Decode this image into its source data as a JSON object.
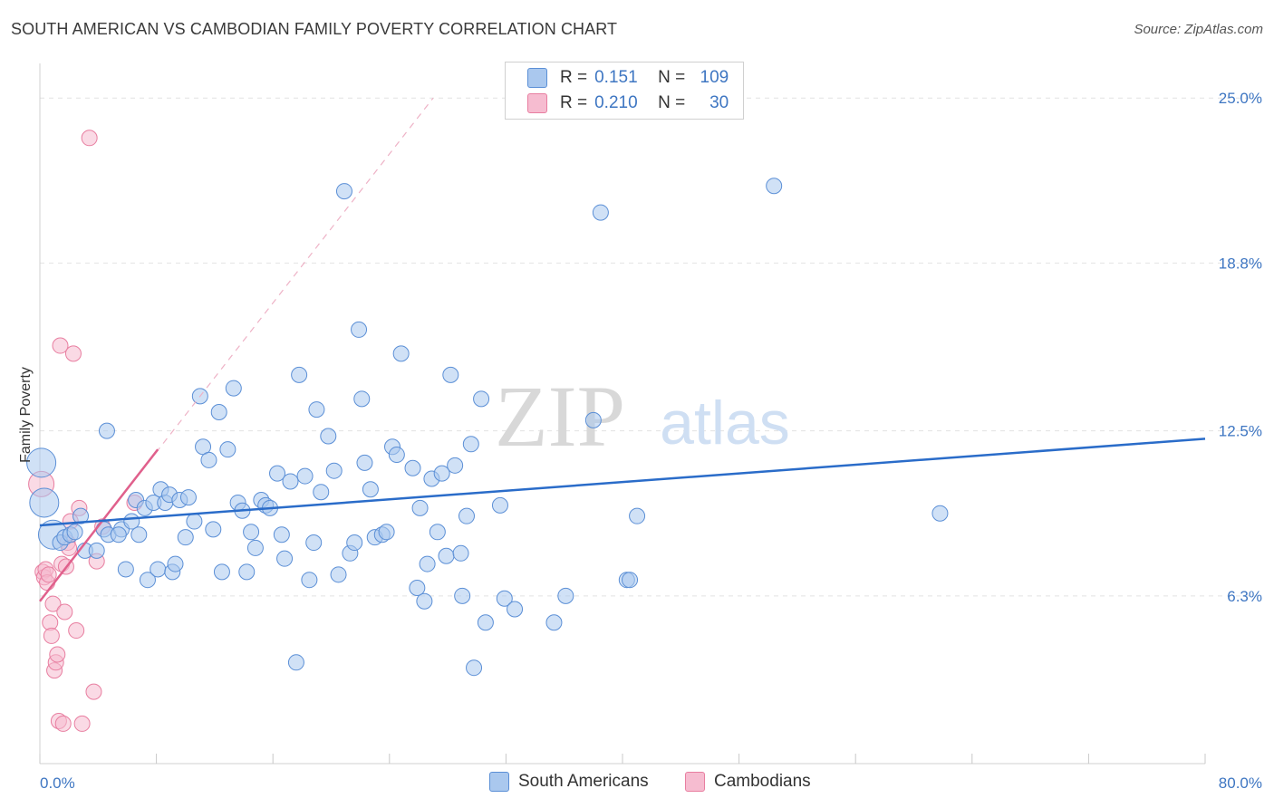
{
  "title": "SOUTH AMERICAN VS CAMBODIAN FAMILY POVERTY CORRELATION CHART",
  "source": "Source: ZipAtlas.com",
  "watermark": {
    "zip": "ZIP",
    "atlas": "atlas"
  },
  "colors": {
    "blue_fill": "#aac8ee",
    "blue_stroke": "#5b8fd6",
    "blue_line": "#2a6cc9",
    "pink_fill": "#f6bcd0",
    "pink_stroke": "#e87ea0",
    "pink_line": "#e0608c",
    "axis_text": "#3e76c2",
    "grid": "#e2e2e2"
  },
  "legend": {
    "rows": [
      {
        "r_label": "R =",
        "r_value": "0.151",
        "n_label": "N =",
        "n_value": "109"
      },
      {
        "r_label": "R =",
        "r_value": "0.210",
        "n_label": "N =",
        "n_value": "30"
      }
    ]
  },
  "bottom_legend": {
    "south_americans": "South Americans",
    "cambodians": "Cambodians"
  },
  "chart_data": {
    "type": "scatter",
    "title": "SOUTH AMERICAN VS CAMBODIAN FAMILY POVERTY CORRELATION CHART",
    "xlabel": "",
    "ylabel": "Family Poverty",
    "xlim": [
      0,
      80
    ],
    "ylim": [
      0,
      26.3
    ],
    "x_tick_labels": [
      "0.0%",
      "80.0%"
    ],
    "y_ticks": [
      6.3,
      12.5,
      18.8,
      25.0
    ],
    "y_tick_labels": [
      "6.3%",
      "12.5%",
      "18.8%",
      "25.0%"
    ],
    "grid": true,
    "legend_position": "top-center",
    "series": [
      {
        "name": "South Americans",
        "color": "#aac8ee",
        "r": 0.151,
        "n": 109,
        "trend": {
          "x": [
            0,
            80
          ],
          "y": [
            8.95,
            12.2
          ]
        },
        "points": [
          {
            "x": 0.1,
            "y": 11.3,
            "big": 1
          },
          {
            "x": 0.3,
            "y": 9.8,
            "big": 1
          },
          {
            "x": 0.9,
            "y": 8.6,
            "big": 1
          },
          {
            "x": 1.4,
            "y": 8.3
          },
          {
            "x": 1.7,
            "y": 8.5
          },
          {
            "x": 2.1,
            "y": 8.6
          },
          {
            "x": 2.4,
            "y": 8.7
          },
          {
            "x": 2.8,
            "y": 9.3
          },
          {
            "x": 3.1,
            "y": 8.0
          },
          {
            "x": 3.9,
            "y": 8.0
          },
          {
            "x": 4.4,
            "y": 8.8
          },
          {
            "x": 4.7,
            "y": 8.6
          },
          {
            "x": 4.6,
            "y": 12.5
          },
          {
            "x": 5.6,
            "y": 8.8
          },
          {
            "x": 5.4,
            "y": 8.6
          },
          {
            "x": 6.3,
            "y": 9.1
          },
          {
            "x": 5.9,
            "y": 7.3
          },
          {
            "x": 6.8,
            "y": 8.6
          },
          {
            "x": 6.6,
            "y": 9.9
          },
          {
            "x": 7.2,
            "y": 9.6
          },
          {
            "x": 7.4,
            "y": 6.9
          },
          {
            "x": 7.8,
            "y": 9.8
          },
          {
            "x": 8.1,
            "y": 7.3
          },
          {
            "x": 8.3,
            "y": 10.3
          },
          {
            "x": 8.6,
            "y": 9.8
          },
          {
            "x": 8.9,
            "y": 10.1
          },
          {
            "x": 9.1,
            "y": 7.2
          },
          {
            "x": 9.3,
            "y": 7.5
          },
          {
            "x": 9.6,
            "y": 9.9
          },
          {
            "x": 10.0,
            "y": 8.5
          },
          {
            "x": 10.2,
            "y": 10.0
          },
          {
            "x": 10.6,
            "y": 9.1
          },
          {
            "x": 11.0,
            "y": 13.8
          },
          {
            "x": 11.2,
            "y": 11.9
          },
          {
            "x": 11.6,
            "y": 11.4
          },
          {
            "x": 11.9,
            "y": 8.8
          },
          {
            "x": 12.3,
            "y": 13.2
          },
          {
            "x": 12.5,
            "y": 7.2
          },
          {
            "x": 12.9,
            "y": 11.8
          },
          {
            "x": 13.3,
            "y": 14.1
          },
          {
            "x": 13.6,
            "y": 9.8
          },
          {
            "x": 13.9,
            "y": 9.5
          },
          {
            "x": 14.2,
            "y": 7.2
          },
          {
            "x": 14.5,
            "y": 8.7
          },
          {
            "x": 14.8,
            "y": 8.1
          },
          {
            "x": 15.2,
            "y": 9.9
          },
          {
            "x": 15.5,
            "y": 9.7
          },
          {
            "x": 15.8,
            "y": 9.6
          },
          {
            "x": 16.3,
            "y": 10.9
          },
          {
            "x": 16.6,
            "y": 8.6
          },
          {
            "x": 16.8,
            "y": 7.7
          },
          {
            "x": 17.2,
            "y": 10.6
          },
          {
            "x": 17.8,
            "y": 14.6
          },
          {
            "x": 18.2,
            "y": 10.8
          },
          {
            "x": 18.5,
            "y": 6.9
          },
          {
            "x": 18.8,
            "y": 8.3
          },
          {
            "x": 19.0,
            "y": 13.3
          },
          {
            "x": 19.3,
            "y": 10.2
          },
          {
            "x": 19.8,
            "y": 12.3
          },
          {
            "x": 20.2,
            "y": 11.0
          },
          {
            "x": 20.5,
            "y": 7.1
          },
          {
            "x": 20.9,
            "y": 21.5
          },
          {
            "x": 21.3,
            "y": 7.9
          },
          {
            "x": 21.6,
            "y": 8.3
          },
          {
            "x": 21.9,
            "y": 16.3
          },
          {
            "x": 22.1,
            "y": 13.7
          },
          {
            "x": 22.3,
            "y": 11.3
          },
          {
            "x": 22.7,
            "y": 10.3
          },
          {
            "x": 23.0,
            "y": 8.5
          },
          {
            "x": 23.5,
            "y": 8.6
          },
          {
            "x": 23.8,
            "y": 8.7
          },
          {
            "x": 24.2,
            "y": 11.9
          },
          {
            "x": 24.5,
            "y": 11.6
          },
          {
            "x": 24.8,
            "y": 15.4
          },
          {
            "x": 25.6,
            "y": 11.1
          },
          {
            "x": 25.9,
            "y": 6.6
          },
          {
            "x": 26.1,
            "y": 9.6
          },
          {
            "x": 26.4,
            "y": 6.1
          },
          {
            "x": 26.6,
            "y": 7.5
          },
          {
            "x": 26.9,
            "y": 10.7
          },
          {
            "x": 27.3,
            "y": 8.7
          },
          {
            "x": 27.6,
            "y": 10.9
          },
          {
            "x": 27.9,
            "y": 7.8
          },
          {
            "x": 28.2,
            "y": 14.6
          },
          {
            "x": 28.5,
            "y": 11.2
          },
          {
            "x": 28.9,
            "y": 7.9
          },
          {
            "x": 29.0,
            "y": 6.3
          },
          {
            "x": 29.3,
            "y": 9.3
          },
          {
            "x": 29.6,
            "y": 12.0
          },
          {
            "x": 29.8,
            "y": 3.6
          },
          {
            "x": 30.3,
            "y": 13.7
          },
          {
            "x": 30.6,
            "y": 5.3
          },
          {
            "x": 31.6,
            "y": 9.7
          },
          {
            "x": 31.9,
            "y": 6.2
          },
          {
            "x": 32.6,
            "y": 5.8
          },
          {
            "x": 35.3,
            "y": 5.3
          },
          {
            "x": 36.1,
            "y": 6.3
          },
          {
            "x": 38.0,
            "y": 12.9
          },
          {
            "x": 38.5,
            "y": 20.7
          },
          {
            "x": 40.3,
            "y": 6.9
          },
          {
            "x": 40.5,
            "y": 6.9
          },
          {
            "x": 41.0,
            "y": 9.3
          },
          {
            "x": 50.4,
            "y": 21.7
          },
          {
            "x": 61.8,
            "y": 9.4
          },
          {
            "x": 17.6,
            "y": 3.8
          }
        ]
      },
      {
        "name": "Cambodians",
        "color": "#f6bcd0",
        "r": 0.21,
        "n": 30,
        "trend": {
          "x": [
            0,
            8.1
          ],
          "y": [
            6.1,
            11.8
          ]
        },
        "trend_extended": {
          "x": [
            0,
            27.0
          ],
          "y": [
            6.1,
            25.0
          ]
        },
        "points": [
          {
            "x": 0.1,
            "y": 10.5,
            "big": 1
          },
          {
            "x": 0.2,
            "y": 7.2
          },
          {
            "x": 0.3,
            "y": 7.0
          },
          {
            "x": 0.4,
            "y": 7.3
          },
          {
            "x": 0.5,
            "y": 6.8
          },
          {
            "x": 0.6,
            "y": 7.1
          },
          {
            "x": 0.7,
            "y": 5.3
          },
          {
            "x": 0.8,
            "y": 4.8
          },
          {
            "x": 0.9,
            "y": 6.0
          },
          {
            "x": 1.0,
            "y": 3.5
          },
          {
            "x": 1.1,
            "y": 3.8
          },
          {
            "x": 1.2,
            "y": 4.1
          },
          {
            "x": 1.3,
            "y": 1.6
          },
          {
            "x": 1.4,
            "y": 15.7
          },
          {
            "x": 1.5,
            "y": 7.5
          },
          {
            "x": 1.6,
            "y": 1.5
          },
          {
            "x": 1.7,
            "y": 5.7
          },
          {
            "x": 1.8,
            "y": 7.4
          },
          {
            "x": 1.9,
            "y": 8.3
          },
          {
            "x": 2.0,
            "y": 8.1
          },
          {
            "x": 2.1,
            "y": 9.1
          },
          {
            "x": 2.3,
            "y": 15.4
          },
          {
            "x": 2.5,
            "y": 5.0
          },
          {
            "x": 2.7,
            "y": 9.6
          },
          {
            "x": 2.9,
            "y": 1.5
          },
          {
            "x": 3.4,
            "y": 23.5
          },
          {
            "x": 3.7,
            "y": 2.7
          },
          {
            "x": 3.9,
            "y": 7.6
          },
          {
            "x": 4.3,
            "y": 8.9
          },
          {
            "x": 6.5,
            "y": 9.8
          }
        ]
      }
    ]
  }
}
